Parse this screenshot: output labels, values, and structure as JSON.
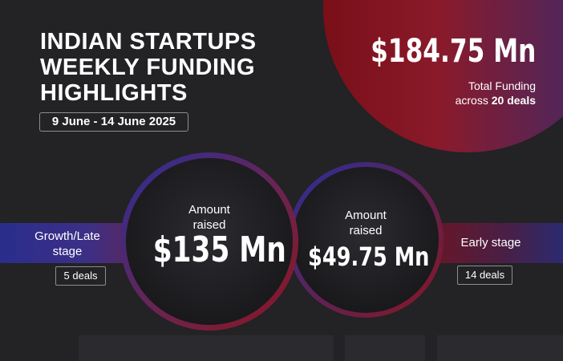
{
  "header": {
    "title_lines": [
      "INDIAN STARTUPS",
      "WEEKLY FUNDING",
      "HIGHLIGHTS"
    ],
    "date_range": "9 June - 14 June 2025"
  },
  "total": {
    "amount": "$184.75 Mn",
    "label_line1": "Total Funding",
    "label_line2_prefix": "across",
    "label_line2_count": "20 deals"
  },
  "growth": {
    "stage_line1": "Growth/Late",
    "stage_line2": "stage",
    "deals": "5 deals",
    "amount_label_line1": "Amount",
    "amount_label_line2": "raised",
    "amount": "$135 Mn"
  },
  "early": {
    "stage": "Early stage",
    "deals": "14 deals",
    "amount_label_line1": "Amount",
    "amount_label_line2": "raised",
    "amount": "$49.75 Mn"
  },
  "colors": {
    "background": "#232225",
    "accent_red": "#8a1520",
    "accent_blue": "#2a2e9a"
  }
}
